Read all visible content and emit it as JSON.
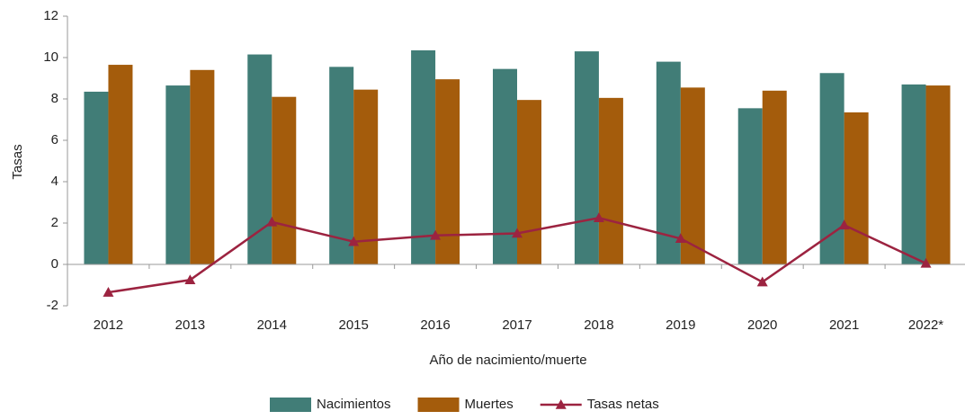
{
  "chart_data": {
    "type": "bar",
    "x_label": "Año de nacimiento/muerte",
    "y_label": "Tasas",
    "categories": [
      "2012",
      "2013",
      "2014",
      "2015",
      "2016",
      "2017",
      "2018",
      "2019",
      "2020",
      "2021",
      "2022*"
    ],
    "series": [
      {
        "name": "Nacimientos",
        "color": "#417d77",
        "type": "bar",
        "values": [
          8.35,
          8.65,
          10.15,
          9.55,
          10.35,
          9.45,
          10.3,
          9.8,
          7.55,
          9.25,
          8.7
        ]
      },
      {
        "name": "Muertes",
        "color": "#a45c0c",
        "type": "bar",
        "values": [
          9.65,
          9.4,
          8.1,
          8.45,
          8.95,
          7.95,
          8.05,
          8.55,
          8.4,
          7.35,
          8.65
        ]
      },
      {
        "name": "Tasas netas",
        "color": "#9c2340",
        "type": "line",
        "values": [
          -1.35,
          -0.75,
          2.05,
          1.1,
          1.4,
          1.5,
          2.25,
          1.25,
          -0.85,
          1.9,
          0.05
        ]
      }
    ],
    "ylim": [
      -2,
      12
    ],
    "yticks": [
      -2,
      0,
      2,
      4,
      6,
      8,
      10,
      12
    ],
    "legend": "bottom"
  }
}
